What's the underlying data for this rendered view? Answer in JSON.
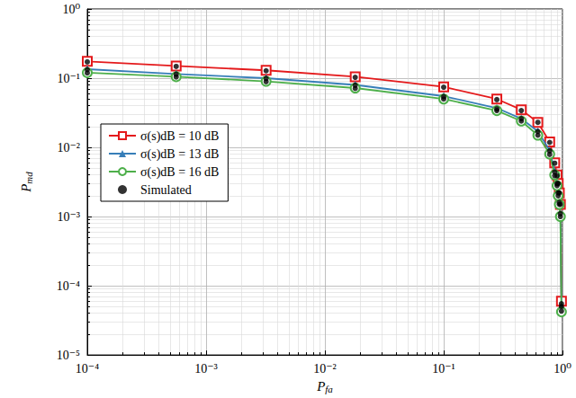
{
  "chart_data": {
    "type": "line",
    "x_label": "Pfa",
    "y_label": "Pmd",
    "log": true,
    "grid": true,
    "legend": "left",
    "xlim": [
      0.0001,
      1
    ],
    "ylim": [
      1e-05,
      1
    ],
    "xticks": [
      {
        "value": 0.0001,
        "label": "10⁻⁴"
      },
      {
        "value": 0.001,
        "label": "10⁻³"
      },
      {
        "value": 0.01,
        "label": "10⁻²"
      },
      {
        "value": 0.1,
        "label": "10⁻¹"
      },
      {
        "value": 1,
        "label": "10⁰"
      }
    ],
    "yticks": [
      {
        "value": 1e-05,
        "label": "10⁻⁵"
      },
      {
        "value": 0.0001,
        "label": "10⁻⁴"
      },
      {
        "value": 0.001,
        "label": "10⁻³"
      },
      {
        "value": 0.01,
        "label": "10⁻²"
      },
      {
        "value": 0.1,
        "label": "10⁻¹"
      },
      {
        "value": 1,
        "label": "10⁰"
      }
    ],
    "x": [
      0.0001,
      0.00056,
      0.0032,
      0.018,
      0.1,
      0.28,
      0.45,
      0.62,
      0.78,
      0.86,
      0.9,
      0.92,
      0.94,
      0.96,
      0.98
    ],
    "series": [
      {
        "name": "σ(s)dB = 10 dB",
        "type": "line",
        "color": "#e41a1c",
        "marker": "square",
        "values": [
          0.175,
          0.15,
          0.13,
          0.105,
          0.075,
          0.05,
          0.035,
          0.023,
          0.012,
          0.006,
          0.004,
          0.003,
          0.0022,
          0.0015,
          6e-05
        ]
      },
      {
        "name": "σ(s)dB = 13 dB",
        "type": "line",
        "color": "#377eb8",
        "marker": "triangle",
        "values": [
          0.135,
          0.115,
          0.1,
          0.08,
          0.055,
          0.037,
          0.026,
          0.017,
          0.009,
          0.0045,
          0.003,
          0.0022,
          0.0016,
          0.0011,
          5e-05
        ]
      },
      {
        "name": "σ(s)dB = 16 dB",
        "type": "line",
        "color": "#4daf4a",
        "marker": "circle",
        "values": [
          0.12,
          0.105,
          0.09,
          0.072,
          0.05,
          0.034,
          0.024,
          0.015,
          0.008,
          0.004,
          0.0028,
          0.002,
          0.0015,
          0.001,
          4.2e-05
        ]
      },
      {
        "name": "Simulated",
        "type": "scatter",
        "color": "#000000",
        "marker": "dot",
        "x": [
          0.0001,
          0.00056,
          0.0032,
          0.018,
          0.1,
          0.28,
          0.45,
          0.62,
          0.78,
          0.86,
          0.9,
          0.92,
          0.94,
          0.96,
          0.98,
          0.0001,
          0.00056,
          0.0032,
          0.018,
          0.1,
          0.28,
          0.45,
          0.62,
          0.78,
          0.86,
          0.9,
          0.92,
          0.94,
          0.96,
          0.98,
          0.0001,
          0.00056,
          0.0032,
          0.018,
          0.1,
          0.28,
          0.45,
          0.62,
          0.78,
          0.86,
          0.9,
          0.92,
          0.94,
          0.96,
          0.98
        ],
        "values": [
          0.172,
          0.148,
          0.128,
          0.103,
          0.074,
          0.049,
          0.034,
          0.023,
          0.0118,
          0.0059,
          0.0039,
          0.003,
          0.0022,
          0.0015,
          5.5e-05,
          0.133,
          0.114,
          0.099,
          0.079,
          0.054,
          0.036,
          0.026,
          0.017,
          0.0089,
          0.0044,
          0.003,
          0.0022,
          0.0016,
          0.0011,
          5e-05,
          0.119,
          0.104,
          0.089,
          0.071,
          0.05,
          0.034,
          0.024,
          0.015,
          0.0079,
          0.0039,
          0.0028,
          0.002,
          0.0015,
          0.001,
          4.3e-05
        ]
      }
    ]
  }
}
